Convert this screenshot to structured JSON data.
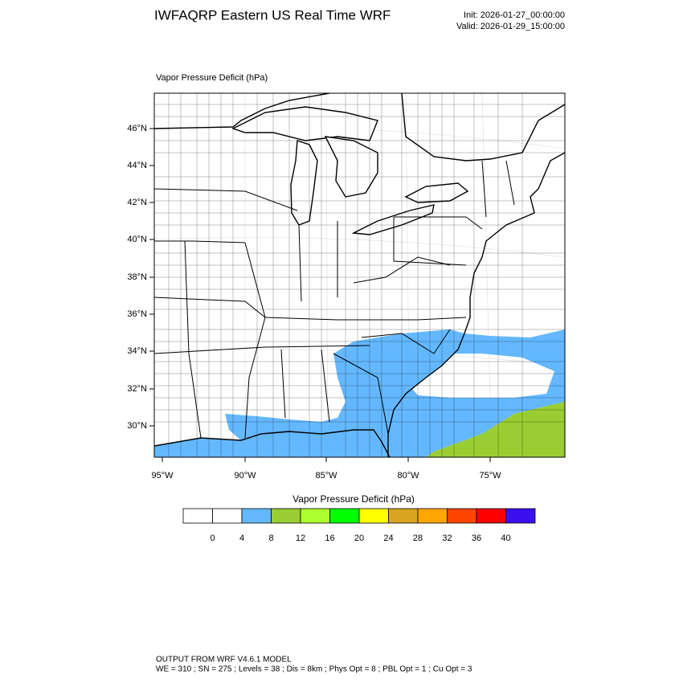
{
  "header": {
    "title": "IWFAQRP Eastern US Real Time WRF",
    "init": "Init: 2026-01-27_00:00:00",
    "valid": "Valid: 2026-01-29_15:00:00"
  },
  "map": {
    "title": "Vapor Pressure Deficit   (hPa)",
    "lat_labels": [
      "46°N",
      "44°N",
      "42°N",
      "40°N",
      "38°N",
      "36°N",
      "34°N",
      "32°N",
      "30°N"
    ],
    "lon_labels": [
      "95°W",
      "90°W",
      "85°W",
      "80°W",
      "75°W"
    ]
  },
  "colorbar": {
    "title": "Vapor Pressure Deficit  (hPa)",
    "colors": [
      "#ffffff",
      "#ffffff",
      "#63b8ff",
      "#9acd32",
      "#adff2f",
      "#00ff00",
      "#ffff00",
      "#daa520",
      "#ffa500",
      "#ff4500",
      "#ff0000",
      "#3a10f0"
    ],
    "ticks": [
      0,
      4,
      8,
      12,
      16,
      20,
      24,
      28,
      32,
      36,
      40
    ]
  },
  "footer": {
    "line1": "OUTPUT FROM WRF V4.6.1 MODEL",
    "line2": "WE = 310 ; SN = 275 ; Levels = 38 ; Dis = 8km ; Phys Opt = 8 ; PBL Opt = 1 ; Cu Opt = 3"
  }
}
